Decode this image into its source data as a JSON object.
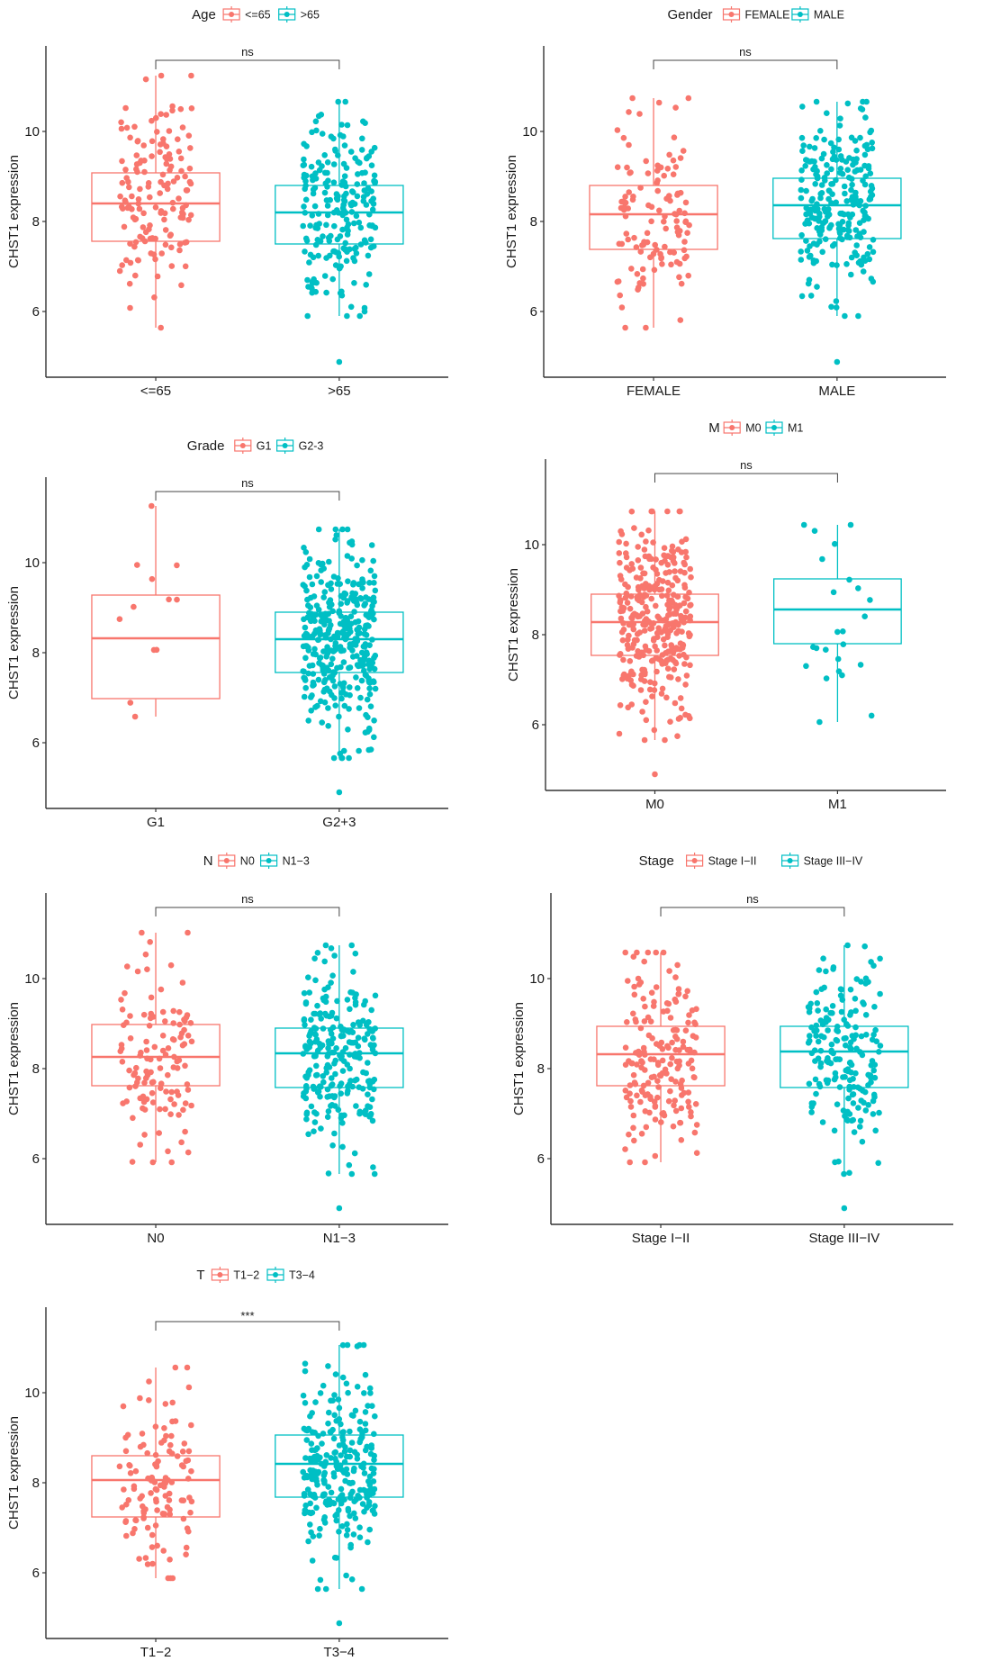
{
  "colors": {
    "group1": "#F8766D",
    "group2": "#00BFC4",
    "axis": "#333333",
    "bracket": "#444444"
  },
  "chart_data": [
    {
      "type": "boxplot",
      "legend_title": "Age",
      "legend_placement": "top",
      "categories": [
        "<=65",
        ">65"
      ],
      "legend_labels": [
        "<=65",
        ">65"
      ],
      "ylabel": "CHST1 expression",
      "xlabel": "",
      "yticks": [
        6,
        8,
        10
      ],
      "ylim": [
        4.54,
        11.9
      ],
      "significance": "ns",
      "groups": [
        {
          "name": "<=65",
          "q1": 7.56,
          "median": 8.4,
          "q3": 9.08,
          "whisker_low": 5.64,
          "whisker_high": 11.24,
          "n_points": 150,
          "outliers": []
        },
        {
          "name": ">65",
          "q1": 7.5,
          "median": 8.2,
          "q3": 8.8,
          "whisker_low": 5.9,
          "whisker_high": 10.66,
          "n_points": 220,
          "outliers": [
            4.88
          ]
        }
      ]
    },
    {
      "type": "boxplot",
      "legend_title": "Gender",
      "legend_placement": "top",
      "categories": [
        "FEMALE",
        "MALE"
      ],
      "legend_labels": [
        "FEMALE",
        "MALE"
      ],
      "ylabel": "CHST1 expression",
      "xlabel": "",
      "yticks": [
        6,
        8,
        10
      ],
      "ylim": [
        4.54,
        11.9
      ],
      "significance": "ns",
      "groups": [
        {
          "name": "FEMALE",
          "q1": 7.38,
          "median": 8.16,
          "q3": 8.8,
          "whisker_low": 5.64,
          "whisker_high": 10.74,
          "n_points": 120,
          "outliers": []
        },
        {
          "name": "MALE",
          "q1": 7.62,
          "median": 8.36,
          "q3": 8.96,
          "whisker_low": 5.9,
          "whisker_high": 10.66,
          "n_points": 250,
          "outliers": [
            4.88
          ]
        }
      ]
    },
    {
      "type": "boxplot",
      "legend_title": "Grade",
      "legend_placement": "top",
      "categories": [
        "G1",
        "G2+3"
      ],
      "legend_labels": [
        "G1",
        "G2-3"
      ],
      "ylabel": "CHST1 expression",
      "xlabel": "",
      "yticks": [
        6,
        8,
        10
      ],
      "ylim": [
        4.54,
        11.9
      ],
      "significance": "ns",
      "groups": [
        {
          "name": "G1",
          "q1": 6.98,
          "median": 8.32,
          "q3": 9.28,
          "whisker_low": 6.58,
          "whisker_high": 11.26,
          "n_points": 12,
          "outliers": []
        },
        {
          "name": "G2+3",
          "q1": 7.56,
          "median": 8.3,
          "q3": 8.9,
          "whisker_low": 5.66,
          "whisker_high": 10.74,
          "n_points": 360,
          "outliers": [
            4.9
          ]
        }
      ]
    },
    {
      "type": "boxplot",
      "legend_title": "M",
      "legend_placement": "top",
      "categories": [
        "M0",
        "M1"
      ],
      "legend_labels": [
        "M0",
        "M1"
      ],
      "ylabel": "CHST1 expression",
      "xlabel": "",
      "yticks": [
        6,
        8,
        10
      ],
      "ylim": [
        4.54,
        11.9
      ],
      "significance": "ns",
      "groups": [
        {
          "name": "M0",
          "q1": 7.54,
          "median": 8.28,
          "q3": 8.9,
          "whisker_low": 5.66,
          "whisker_high": 10.74,
          "n_points": 330,
          "outliers": [
            4.9
          ]
        },
        {
          "name": "M1",
          "q1": 7.8,
          "median": 8.56,
          "q3": 9.24,
          "whisker_low": 6.06,
          "whisker_high": 10.44,
          "n_points": 24,
          "outliers": []
        }
      ]
    },
    {
      "type": "boxplot",
      "legend_title": "N",
      "legend_placement": "top",
      "categories": [
        "N0",
        "N1−3"
      ],
      "legend_labels": [
        "N0",
        "N1−3"
      ],
      "ylabel": "CHST1 expression",
      "xlabel": "",
      "yticks": [
        6,
        8,
        10
      ],
      "ylim": [
        4.54,
        11.9
      ],
      "significance": "ns",
      "groups": [
        {
          "name": "N0",
          "q1": 7.62,
          "median": 8.26,
          "q3": 8.98,
          "whisker_low": 5.92,
          "whisker_high": 11.02,
          "n_points": 120,
          "outliers": []
        },
        {
          "name": "N1−3",
          "q1": 7.58,
          "median": 8.34,
          "q3": 8.9,
          "whisker_low": 5.66,
          "whisker_high": 10.74,
          "n_points": 250,
          "outliers": [
            4.9
          ]
        }
      ]
    },
    {
      "type": "boxplot",
      "legend_title": "Stage",
      "legend_placement": "top",
      "categories": [
        "Stage I−II",
        "Stage III−IV"
      ],
      "legend_labels": [
        "Stage I−II",
        "Stage III−IV"
      ],
      "ylabel": "CHST1 expression",
      "xlabel": "",
      "yticks": [
        6,
        8,
        10
      ],
      "ylim": [
        4.54,
        11.9
      ],
      "significance": "ns",
      "groups": [
        {
          "name": "Stage I−II",
          "q1": 7.62,
          "median": 8.32,
          "q3": 8.94,
          "whisker_low": 5.92,
          "whisker_high": 10.58,
          "n_points": 180,
          "outliers": []
        },
        {
          "name": "Stage III−IV",
          "q1": 7.58,
          "median": 8.38,
          "q3": 8.94,
          "whisker_low": 5.66,
          "whisker_high": 10.74,
          "n_points": 190,
          "outliers": [
            4.9
          ]
        }
      ]
    },
    {
      "type": "boxplot",
      "legend_title": "T",
      "legend_placement": "top",
      "categories": [
        "T1−2",
        "T3−4"
      ],
      "legend_labels": [
        "T1−2",
        "T3−4"
      ],
      "ylabel": "CHST1 expression",
      "xlabel": "",
      "yticks": [
        6,
        8,
        10
      ],
      "ylim": [
        4.54,
        11.9
      ],
      "significance": "***",
      "groups": [
        {
          "name": "T1−2",
          "q1": 7.24,
          "median": 8.06,
          "q3": 8.6,
          "whisker_low": 5.88,
          "whisker_high": 10.56,
          "n_points": 120,
          "outliers": []
        },
        {
          "name": "T3−4",
          "q1": 7.68,
          "median": 8.42,
          "q3": 9.06,
          "whisker_low": 5.64,
          "whisker_high": 11.06,
          "n_points": 270,
          "outliers": [
            4.88
          ]
        }
      ]
    }
  ]
}
